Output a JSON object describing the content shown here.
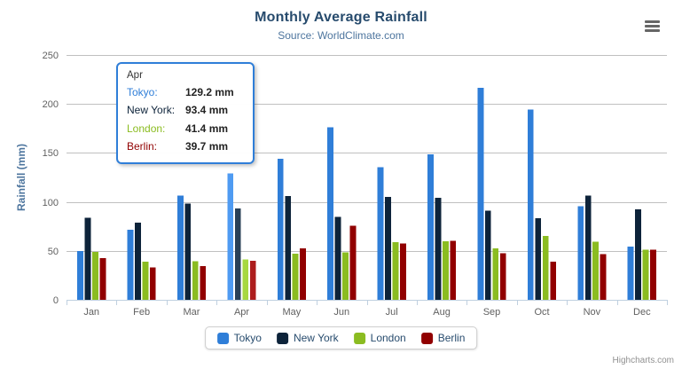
{
  "chart": {
    "credits": "Highcharts.com",
    "export_icon": "hamburger-icon",
    "background_color": "#ffffff",
    "grid_color": "#c0c0c0",
    "axis_line_color": "#c0d0e0",
    "axis_label_color": "#606060",
    "title_color": "#274b6d",
    "subtitle_color": "#4d759e",
    "yaxis_title_color": "#4d759e"
  },
  "chart_data": {
    "type": "bar",
    "orientation": "vertical",
    "title": "Monthly Average Rainfall",
    "subtitle": "Source: WorldClimate.com",
    "xlabel": "",
    "ylabel": "Rainfall (mm)",
    "ylim": [
      0,
      250
    ],
    "yticks": [
      0,
      50,
      100,
      150,
      200,
      250
    ],
    "grid": true,
    "legend_position": "bottom",
    "hovered_category": "Apr",
    "hovered_category_index": 3,
    "categories": [
      "Jan",
      "Feb",
      "Mar",
      "Apr",
      "May",
      "Jun",
      "Jul",
      "Aug",
      "Sep",
      "Oct",
      "Nov",
      "Dec"
    ],
    "series": [
      {
        "name": "Tokyo",
        "color": "#2f7ed8",
        "hover_color": "#4f9bf2",
        "values": [
          49.9,
          71.5,
          106.4,
          129.2,
          144.0,
          176.0,
          135.6,
          148.5,
          216.4,
          194.1,
          95.6,
          54.4
        ]
      },
      {
        "name": "New York",
        "color": "#0d233a",
        "hover_color": "#294057",
        "values": [
          83.6,
          78.8,
          98.5,
          93.4,
          106.0,
          84.5,
          105.0,
          104.3,
          91.2,
          83.5,
          106.6,
          92.3
        ]
      },
      {
        "name": "London",
        "color": "#8bbc21",
        "hover_color": "#a7d840",
        "values": [
          48.9,
          38.8,
          39.3,
          41.4,
          47.0,
          48.3,
          59.0,
          59.6,
          52.4,
          65.2,
          59.3,
          51.2
        ]
      },
      {
        "name": "Berlin",
        "color": "#910000",
        "hover_color": "#ad1d1d",
        "values": [
          42.4,
          33.2,
          34.5,
          39.7,
          52.6,
          75.5,
          57.4,
          60.4,
          47.6,
          39.1,
          46.8,
          51.1
        ]
      }
    ]
  },
  "tooltip": {
    "header": "Apr",
    "border_color": "#2f7ed8",
    "rows": [
      {
        "label": "Tokyo:",
        "value": "129.2 mm",
        "color": "#2f7ed8"
      },
      {
        "label": "New York:",
        "value": "93.4 mm",
        "color": "#0d233a"
      },
      {
        "label": "London:",
        "value": "41.4 mm",
        "color": "#8bbc21"
      },
      {
        "label": "Berlin:",
        "value": "39.7 mm",
        "color": "#910000"
      }
    ]
  }
}
